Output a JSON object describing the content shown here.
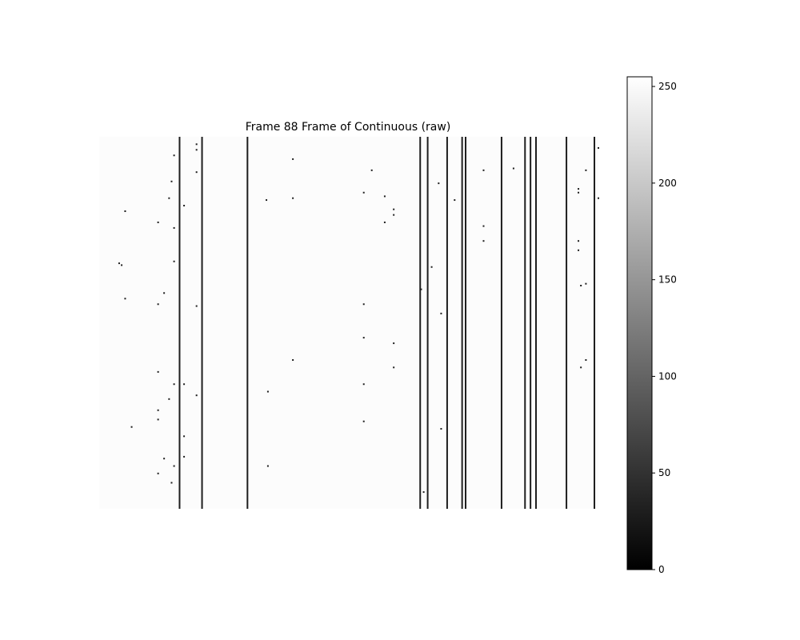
{
  "chart_data": {
    "type": "heatmap",
    "title": "Frame 88 Frame of Continuous (raw)",
    "colormap": "gray",
    "value_range": [
      0,
      255
    ],
    "image_axes_visible": false,
    "background_value": 252,
    "dark_columns": [
      0.161,
      0.206,
      0.297,
      0.643,
      0.658,
      0.697,
      0.727,
      0.734,
      0.806,
      0.853,
      0.864,
      0.875,
      0.936,
      0.992
    ],
    "dark_column_value": 30,
    "dark_specks": [
      {
        "x": 0.15,
        "y": 0.05
      },
      {
        "x": 0.195,
        "y": 0.02
      },
      {
        "x": 0.195,
        "y": 0.035
      },
      {
        "x": 0.145,
        "y": 0.12
      },
      {
        "x": 0.17,
        "y": 0.185
      },
      {
        "x": 0.14,
        "y": 0.165
      },
      {
        "x": 0.195,
        "y": 0.095
      },
      {
        "x": 0.052,
        "y": 0.2
      },
      {
        "x": 0.118,
        "y": 0.23
      },
      {
        "x": 0.15,
        "y": 0.245
      },
      {
        "x": 0.15,
        "y": 0.335
      },
      {
        "x": 0.04,
        "y": 0.34
      },
      {
        "x": 0.045,
        "y": 0.345
      },
      {
        "x": 0.052,
        "y": 0.435
      },
      {
        "x": 0.13,
        "y": 0.42
      },
      {
        "x": 0.118,
        "y": 0.45
      },
      {
        "x": 0.195,
        "y": 0.455
      },
      {
        "x": 0.118,
        "y": 0.632
      },
      {
        "x": 0.15,
        "y": 0.665
      },
      {
        "x": 0.17,
        "y": 0.665
      },
      {
        "x": 0.195,
        "y": 0.695
      },
      {
        "x": 0.14,
        "y": 0.705
      },
      {
        "x": 0.118,
        "y": 0.735
      },
      {
        "x": 0.118,
        "y": 0.76
      },
      {
        "x": 0.065,
        "y": 0.78
      },
      {
        "x": 0.17,
        "y": 0.805
      },
      {
        "x": 0.17,
        "y": 0.86
      },
      {
        "x": 0.13,
        "y": 0.865
      },
      {
        "x": 0.15,
        "y": 0.885
      },
      {
        "x": 0.118,
        "y": 0.905
      },
      {
        "x": 0.145,
        "y": 0.93
      },
      {
        "x": 0.335,
        "y": 0.17
      },
      {
        "x": 0.388,
        "y": 0.06
      },
      {
        "x": 0.388,
        "y": 0.165
      },
      {
        "x": 0.388,
        "y": 0.6
      },
      {
        "x": 0.338,
        "y": 0.685
      },
      {
        "x": 0.338,
        "y": 0.885
      },
      {
        "x": 0.53,
        "y": 0.15
      },
      {
        "x": 0.546,
        "y": 0.09
      },
      {
        "x": 0.572,
        "y": 0.16
      },
      {
        "x": 0.59,
        "y": 0.195
      },
      {
        "x": 0.59,
        "y": 0.21
      },
      {
        "x": 0.572,
        "y": 0.23
      },
      {
        "x": 0.53,
        "y": 0.45
      },
      {
        "x": 0.53,
        "y": 0.54
      },
      {
        "x": 0.59,
        "y": 0.555
      },
      {
        "x": 0.59,
        "y": 0.62
      },
      {
        "x": 0.53,
        "y": 0.665
      },
      {
        "x": 0.53,
        "y": 0.765
      },
      {
        "x": 0.666,
        "y": 0.35
      },
      {
        "x": 0.68,
        "y": 0.125
      },
      {
        "x": 0.712,
        "y": 0.17
      },
      {
        "x": 0.685,
        "y": 0.475
      },
      {
        "x": 0.685,
        "y": 0.785
      },
      {
        "x": 0.65,
        "y": 0.955
      },
      {
        "x": 0.645,
        "y": 0.41
      },
      {
        "x": 0.77,
        "y": 0.09
      },
      {
        "x": 0.77,
        "y": 0.24
      },
      {
        "x": 0.77,
        "y": 0.28
      },
      {
        "x": 0.83,
        "y": 0.085
      },
      {
        "x": 0.96,
        "y": 0.14
      },
      {
        "x": 0.96,
        "y": 0.15
      },
      {
        "x": 0.975,
        "y": 0.09
      },
      {
        "x": 0.96,
        "y": 0.28
      },
      {
        "x": 0.96,
        "y": 0.305
      },
      {
        "x": 0.965,
        "y": 0.4
      },
      {
        "x": 0.975,
        "y": 0.395
      },
      {
        "x": 0.965,
        "y": 0.62
      },
      {
        "x": 0.975,
        "y": 0.6
      },
      {
        "x": 1.0,
        "y": 0.03
      },
      {
        "x": 1.0,
        "y": 0.165
      }
    ],
    "colorbar": {
      "ticks": [
        0,
        50,
        100,
        150,
        200,
        250
      ],
      "tick_labels": [
        "0",
        "50",
        "100",
        "150",
        "200",
        "250"
      ]
    }
  }
}
